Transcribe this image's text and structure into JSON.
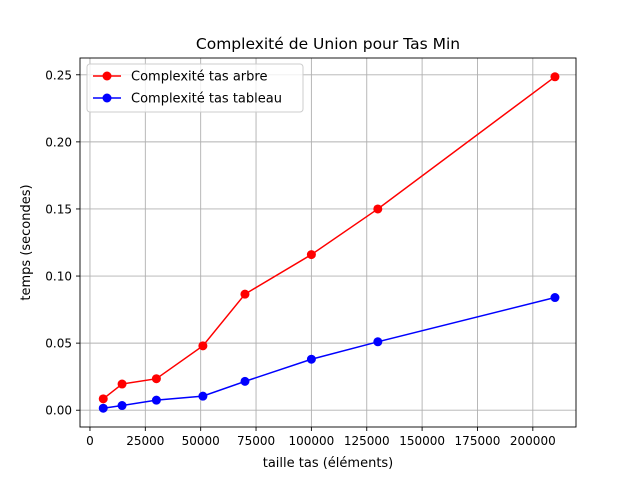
{
  "chart_data": {
    "type": "line",
    "title": "Complexité de Union pour Tas Min",
    "xlabel": "taille tas (éléments)",
    "ylabel": "temps (secondes)",
    "xlim": [
      -4500,
      219500
    ],
    "ylim": [
      -0.0125,
      0.2625
    ],
    "xticks": [
      0,
      25000,
      50000,
      75000,
      100000,
      125000,
      150000,
      175000,
      200000
    ],
    "yticks": [
      0.0,
      0.05,
      0.1,
      0.15,
      0.2,
      0.25
    ],
    "xtick_labels": [
      "0",
      "25000",
      "50000",
      "75000",
      "100000",
      "125000",
      "150000",
      "175000",
      "200000"
    ],
    "ytick_labels": [
      "0.00",
      "0.05",
      "0.10",
      "0.15",
      "0.20",
      "0.25"
    ],
    "grid": true,
    "legend_position": "top-left",
    "series": [
      {
        "name": "Complexité tas arbre",
        "color": "#ff0000",
        "marker": "circle",
        "x": [
          6000,
          14500,
          30000,
          51000,
          70000,
          100000,
          130000,
          210000
        ],
        "y": [
          0.0085,
          0.0195,
          0.0235,
          0.048,
          0.0865,
          0.116,
          0.15,
          0.2485
        ]
      },
      {
        "name": "Complexité tas tableau",
        "color": "#0000ff",
        "marker": "circle",
        "x": [
          6000,
          14500,
          30000,
          51000,
          70000,
          100000,
          130000,
          210000
        ],
        "y": [
          0.0015,
          0.0035,
          0.0075,
          0.0105,
          0.0215,
          0.038,
          0.051,
          0.084
        ]
      }
    ]
  }
}
